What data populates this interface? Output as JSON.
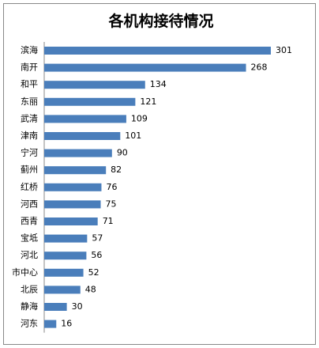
{
  "chart_data": {
    "type": "bar",
    "orientation": "horizontal",
    "title": "各机构接待情况",
    "categories": [
      "滨海",
      "南开",
      "和平",
      "东丽",
      "武清",
      "津南",
      "宁河",
      "蓟州",
      "红桥",
      "河西",
      "西青",
      "宝坻",
      "河北",
      "市中心",
      "北辰",
      "静海",
      "河东"
    ],
    "values": [
      301,
      268,
      134,
      121,
      109,
      101,
      90,
      82,
      76,
      75,
      71,
      57,
      56,
      52,
      48,
      30,
      16
    ],
    "color": "#4a7ebb"
  }
}
